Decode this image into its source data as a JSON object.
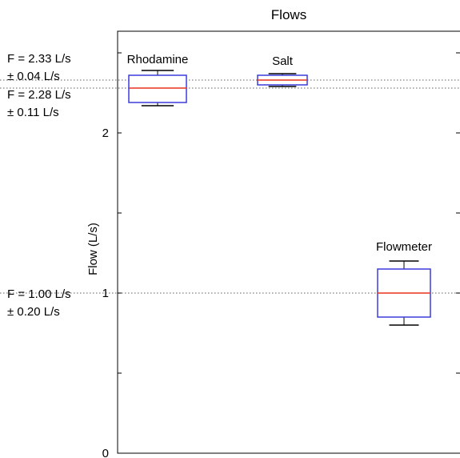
{
  "chart_data": {
    "type": "box",
    "title": "Flows",
    "xlabel": "",
    "ylabel": "Flow (L/s)",
    "ylim": [
      0,
      2.6
    ],
    "yticks": [
      0,
      1,
      2
    ],
    "yticks_minor": [
      0.5,
      1.5,
      2.5
    ],
    "grid": false,
    "categories": [
      "Rhodamine",
      "Salt",
      "Flowmeter"
    ],
    "boxes": [
      {
        "name": "Rhodamine",
        "whisker_low": 2.17,
        "q1": 2.19,
        "median": 2.28,
        "q3": 2.36,
        "whisker_high": 2.39
      },
      {
        "name": "Salt",
        "whisker_low": 2.29,
        "q1": 2.3,
        "median": 2.33,
        "q3": 2.36,
        "whisker_high": 2.37
      },
      {
        "name": "Flowmeter",
        "whisker_low": 0.8,
        "q1": 0.85,
        "median": 1.0,
        "q3": 1.15,
        "whisker_high": 1.2
      }
    ],
    "reference_lines": [
      {
        "y": 2.33,
        "label_lines": [
          "F = 2.33 L/s",
          "± 0.04 L/s"
        ]
      },
      {
        "y": 2.28,
        "label_lines": [
          "F = 2.28 L/s",
          "± 0.11 L/s"
        ]
      },
      {
        "y": 1.0,
        "label_lines": [
          "F = 1.00 L/s",
          "± 0.20 L/s"
        ]
      }
    ],
    "colors": {
      "box": "#3b3bdc",
      "median": "#e8321e",
      "whisker": "#000000",
      "reference": "#808080"
    }
  }
}
